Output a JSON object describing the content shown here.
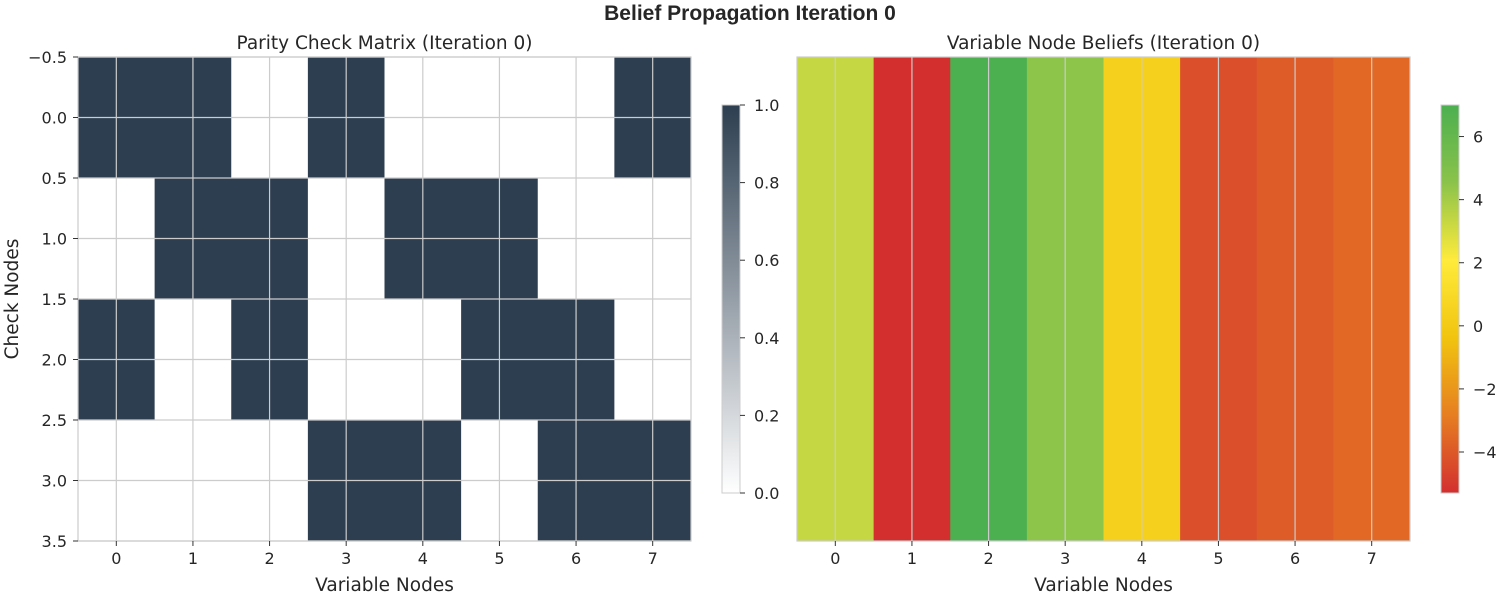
{
  "figure": {
    "title": "Belief Propagation Iteration 0"
  },
  "chart_data": [
    {
      "type": "heatmap",
      "title": "Parity Check Matrix (Iteration 0)",
      "xlabel": "Variable Nodes",
      "ylabel": "Check Nodes",
      "x_ticks": [
        "0",
        "1",
        "2",
        "3",
        "4",
        "5",
        "6",
        "7"
      ],
      "y_ticks": [
        "−0.5",
        "0.0",
        "0.5",
        "1.0",
        "1.5",
        "2.0",
        "2.5",
        "3.0",
        "3.5"
      ],
      "y_tick_values": [
        -0.5,
        0.0,
        0.5,
        1.0,
        1.5,
        2.0,
        2.5,
        3.0,
        3.5
      ],
      "ylim": [
        3.5,
        -0.5
      ],
      "matrix": [
        [
          1,
          1,
          0,
          1,
          0,
          0,
          0,
          1
        ],
        [
          0,
          1,
          1,
          0,
          1,
          1,
          0,
          0
        ],
        [
          1,
          0,
          1,
          0,
          0,
          1,
          1,
          0
        ],
        [
          0,
          0,
          0,
          1,
          1,
          0,
          1,
          1
        ]
      ],
      "colormap": [
        "#ffffff",
        "#2c3e50"
      ],
      "colorbar": {
        "range": [
          0,
          1
        ],
        "ticks": [
          "0.0",
          "0.2",
          "0.4",
          "0.6",
          "0.8",
          "1.0"
        ],
        "tick_values": [
          0.0,
          0.2,
          0.4,
          0.6,
          0.8,
          1.0
        ]
      },
      "grid": true
    },
    {
      "type": "heatmap",
      "title": "Variable Node Beliefs (Iteration 0)",
      "xlabel": "Variable Nodes",
      "x_ticks": [
        "0",
        "1",
        "2",
        "3",
        "4",
        "5",
        "6",
        "7"
      ],
      "values": [
        3.3,
        -5.3,
        7.0,
        4.5,
        0.4,
        -4.3,
        -3.9,
        -3.5
      ],
      "colormap": [
        "#d32f2f",
        "#e67e22",
        "#f1c40f",
        "#ffeb3b",
        "#8bc34a",
        "#4caf50"
      ],
      "colorbar": {
        "range": [
          -5.3,
          7.0
        ],
        "ticks": [
          "−4",
          "−2",
          "0",
          "2",
          "4",
          "6"
        ],
        "tick_values": [
          -4,
          -2,
          0,
          2,
          4,
          6
        ]
      },
      "grid": true
    }
  ]
}
